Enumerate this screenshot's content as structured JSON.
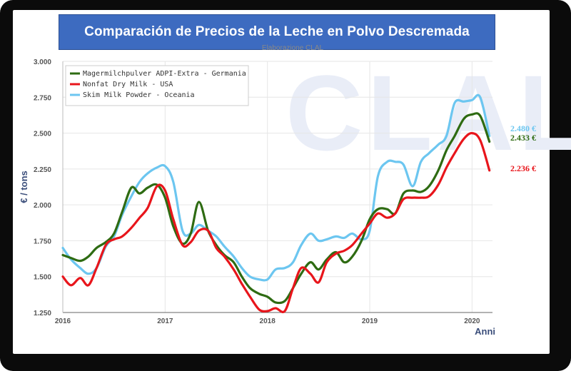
{
  "title": "Comparación de Precios de la Leche en Polvo Descremada",
  "subtitle": "Elaborazione CLAL",
  "watermark": "CLAL",
  "chart_data": {
    "type": "line",
    "title": "Comparación de Precios de la Leche en Polvo Descremada",
    "xlabel": "Anni",
    "ylabel": "€ / tons",
    "xlim": [
      2016.0,
      2020.2
    ],
    "ylim": [
      1.25,
      3.0
    ],
    "x_ticks": [
      "2016",
      "2017",
      "2018",
      "2019",
      "2020"
    ],
    "y_ticks": [
      "1.250",
      "1.500",
      "1.750",
      "2.000",
      "2.250",
      "2.500",
      "2.750",
      "3.000"
    ],
    "legend_position": "top-left",
    "series": [
      {
        "name": "Magermilchpulver ADPI-Extra - Germania",
        "color": "#2e6b12",
        "end_label": "2.433 €",
        "x": [
          2016.0,
          2016.08,
          2016.17,
          2016.25,
          2016.33,
          2016.42,
          2016.5,
          2016.58,
          2016.67,
          2016.75,
          2016.83,
          2016.92,
          2017.0,
          2017.08,
          2017.17,
          2017.25,
          2017.33,
          2017.42,
          2017.5,
          2017.58,
          2017.67,
          2017.75,
          2017.83,
          2017.92,
          2018.0,
          2018.08,
          2018.17,
          2018.25,
          2018.33,
          2018.42,
          2018.5,
          2018.58,
          2018.67,
          2018.75,
          2018.83,
          2018.92,
          2019.0,
          2019.08,
          2019.17,
          2019.25,
          2019.33,
          2019.42,
          2019.5,
          2019.58,
          2019.67,
          2019.75,
          2019.83,
          2019.92,
          2020.0,
          2020.08,
          2020.17
        ],
        "values": [
          1.65,
          1.63,
          1.61,
          1.64,
          1.7,
          1.74,
          1.8,
          1.95,
          2.12,
          2.08,
          2.12,
          2.14,
          2.05,
          1.85,
          1.73,
          1.8,
          2.02,
          1.82,
          1.72,
          1.65,
          1.6,
          1.5,
          1.42,
          1.38,
          1.36,
          1.32,
          1.33,
          1.42,
          1.52,
          1.6,
          1.55,
          1.62,
          1.67,
          1.6,
          1.64,
          1.75,
          1.9,
          1.97,
          1.97,
          1.94,
          2.08,
          2.1,
          2.09,
          2.13,
          2.24,
          2.38,
          2.48,
          2.6,
          2.63,
          2.62,
          2.44
        ]
      },
      {
        "name": "Nonfat Dry Milk - USA",
        "color": "#e8151b",
        "end_label": "2.236 €",
        "x": [
          2016.0,
          2016.08,
          2016.17,
          2016.25,
          2016.33,
          2016.42,
          2016.5,
          2016.58,
          2016.67,
          2016.75,
          2016.83,
          2016.92,
          2017.0,
          2017.08,
          2017.17,
          2017.25,
          2017.33,
          2017.42,
          2017.5,
          2017.58,
          2017.67,
          2017.75,
          2017.83,
          2017.92,
          2018.0,
          2018.08,
          2018.17,
          2018.25,
          2018.33,
          2018.42,
          2018.5,
          2018.58,
          2018.67,
          2018.75,
          2018.83,
          2018.92,
          2019.0,
          2019.08,
          2019.17,
          2019.25,
          2019.33,
          2019.42,
          2019.5,
          2019.58,
          2019.67,
          2019.75,
          2019.83,
          2019.92,
          2020.0,
          2020.08,
          2020.17
        ],
        "values": [
          1.5,
          1.44,
          1.49,
          1.44,
          1.56,
          1.72,
          1.76,
          1.78,
          1.84,
          1.91,
          1.98,
          2.13,
          2.1,
          1.9,
          1.72,
          1.74,
          1.82,
          1.82,
          1.7,
          1.64,
          1.55,
          1.45,
          1.36,
          1.27,
          1.26,
          1.28,
          1.26,
          1.42,
          1.56,
          1.52,
          1.46,
          1.6,
          1.66,
          1.68,
          1.72,
          1.8,
          1.87,
          1.94,
          1.91,
          1.94,
          2.04,
          2.05,
          2.05,
          2.06,
          2.14,
          2.26,
          2.36,
          2.46,
          2.5,
          2.45,
          2.24
        ]
      },
      {
        "name": "Skim Milk Powder - Oceania",
        "color": "#6cc6f0",
        "end_label": "2.480 €",
        "x": [
          2016.0,
          2016.08,
          2016.17,
          2016.25,
          2016.33,
          2016.42,
          2016.5,
          2016.58,
          2016.67,
          2016.75,
          2016.83,
          2016.92,
          2017.0,
          2017.08,
          2017.17,
          2017.25,
          2017.33,
          2017.42,
          2017.5,
          2017.58,
          2017.67,
          2017.75,
          2017.83,
          2017.92,
          2018.0,
          2018.08,
          2018.17,
          2018.25,
          2018.33,
          2018.42,
          2018.5,
          2018.58,
          2018.67,
          2018.75,
          2018.83,
          2018.92,
          2019.0,
          2019.08,
          2019.17,
          2019.25,
          2019.33,
          2019.42,
          2019.5,
          2019.58,
          2019.67,
          2019.75,
          2019.83,
          2019.92,
          2020.0,
          2020.08,
          2020.17
        ],
        "values": [
          1.7,
          1.62,
          1.56,
          1.52,
          1.56,
          1.71,
          1.78,
          1.93,
          2.06,
          2.16,
          2.22,
          2.26,
          2.27,
          2.16,
          1.82,
          1.8,
          1.86,
          1.82,
          1.78,
          1.71,
          1.64,
          1.56,
          1.5,
          1.48,
          1.48,
          1.55,
          1.56,
          1.6,
          1.72,
          1.8,
          1.75,
          1.76,
          1.78,
          1.77,
          1.8,
          1.76,
          1.82,
          2.2,
          2.3,
          2.3,
          2.28,
          2.13,
          2.3,
          2.36,
          2.42,
          2.48,
          2.71,
          2.72,
          2.73,
          2.75,
          2.48
        ]
      }
    ]
  }
}
